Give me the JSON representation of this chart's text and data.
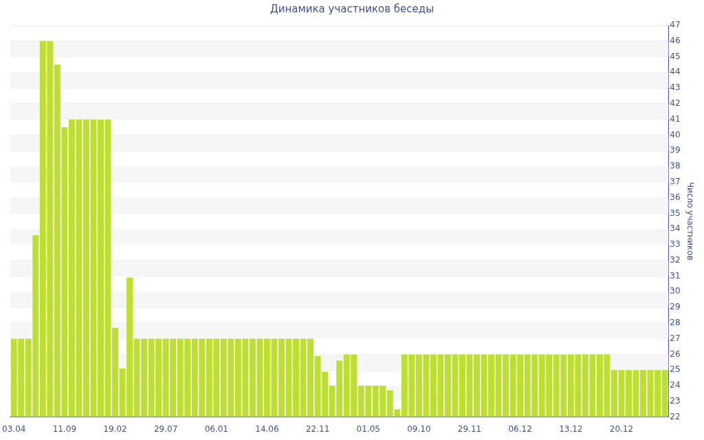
{
  "chart_data": {
    "type": "bar",
    "title": "Динамика участников беседы",
    "ylabel": "Число участников",
    "categories": [
      "03.04",
      null,
      null,
      null,
      null,
      null,
      null,
      "11.09",
      null,
      null,
      null,
      null,
      null,
      null,
      "19.02",
      null,
      null,
      null,
      null,
      null,
      null,
      "29.07",
      null,
      null,
      null,
      null,
      null,
      null,
      "06.01",
      null,
      null,
      null,
      null,
      null,
      null,
      "14.06",
      null,
      null,
      null,
      null,
      null,
      null,
      "22.11",
      null,
      null,
      null,
      null,
      null,
      null,
      "01.05",
      null,
      null,
      null,
      null,
      null,
      null,
      "09.10",
      null,
      null,
      null,
      null,
      null,
      null,
      "29.11",
      null,
      null,
      null,
      null,
      null,
      null,
      "06.12",
      null,
      null,
      null,
      null,
      null,
      null,
      "13.12",
      null,
      null,
      null,
      null,
      null,
      null,
      "20.12",
      null,
      null,
      null,
      null,
      null,
      null
    ],
    "values": [
      27,
      27,
      27,
      33.6,
      46,
      46,
      44.5,
      40.5,
      41,
      41,
      41,
      41,
      41,
      41,
      27.7,
      25.1,
      30.9,
      27,
      27,
      27,
      27,
      27,
      27,
      27,
      27,
      27,
      27,
      27,
      27,
      27,
      27,
      27,
      27,
      27,
      27,
      27,
      27,
      27,
      27,
      27,
      27,
      27,
      25.9,
      24.9,
      24,
      25.6,
      26,
      26,
      24,
      24,
      24,
      24,
      23.7,
      22.5,
      26,
      26,
      26,
      26,
      26,
      26,
      26,
      26,
      26,
      26,
      26,
      26,
      26,
      26,
      26,
      26,
      26,
      26,
      26,
      26,
      26,
      26,
      26,
      26,
      26,
      26,
      26,
      26,
      26,
      25,
      25,
      25,
      25,
      25,
      25,
      25,
      25
    ],
    "color": "#bde030",
    "ylim": [
      22,
      47
    ],
    "yticks": [
      22,
      23,
      24,
      25,
      26,
      27,
      28,
      29,
      30,
      31,
      32,
      33,
      34,
      35,
      36,
      37,
      38,
      39,
      40,
      41,
      42,
      43,
      44,
      45,
      46,
      47
    ],
    "grid": "y",
    "legend": false
  }
}
